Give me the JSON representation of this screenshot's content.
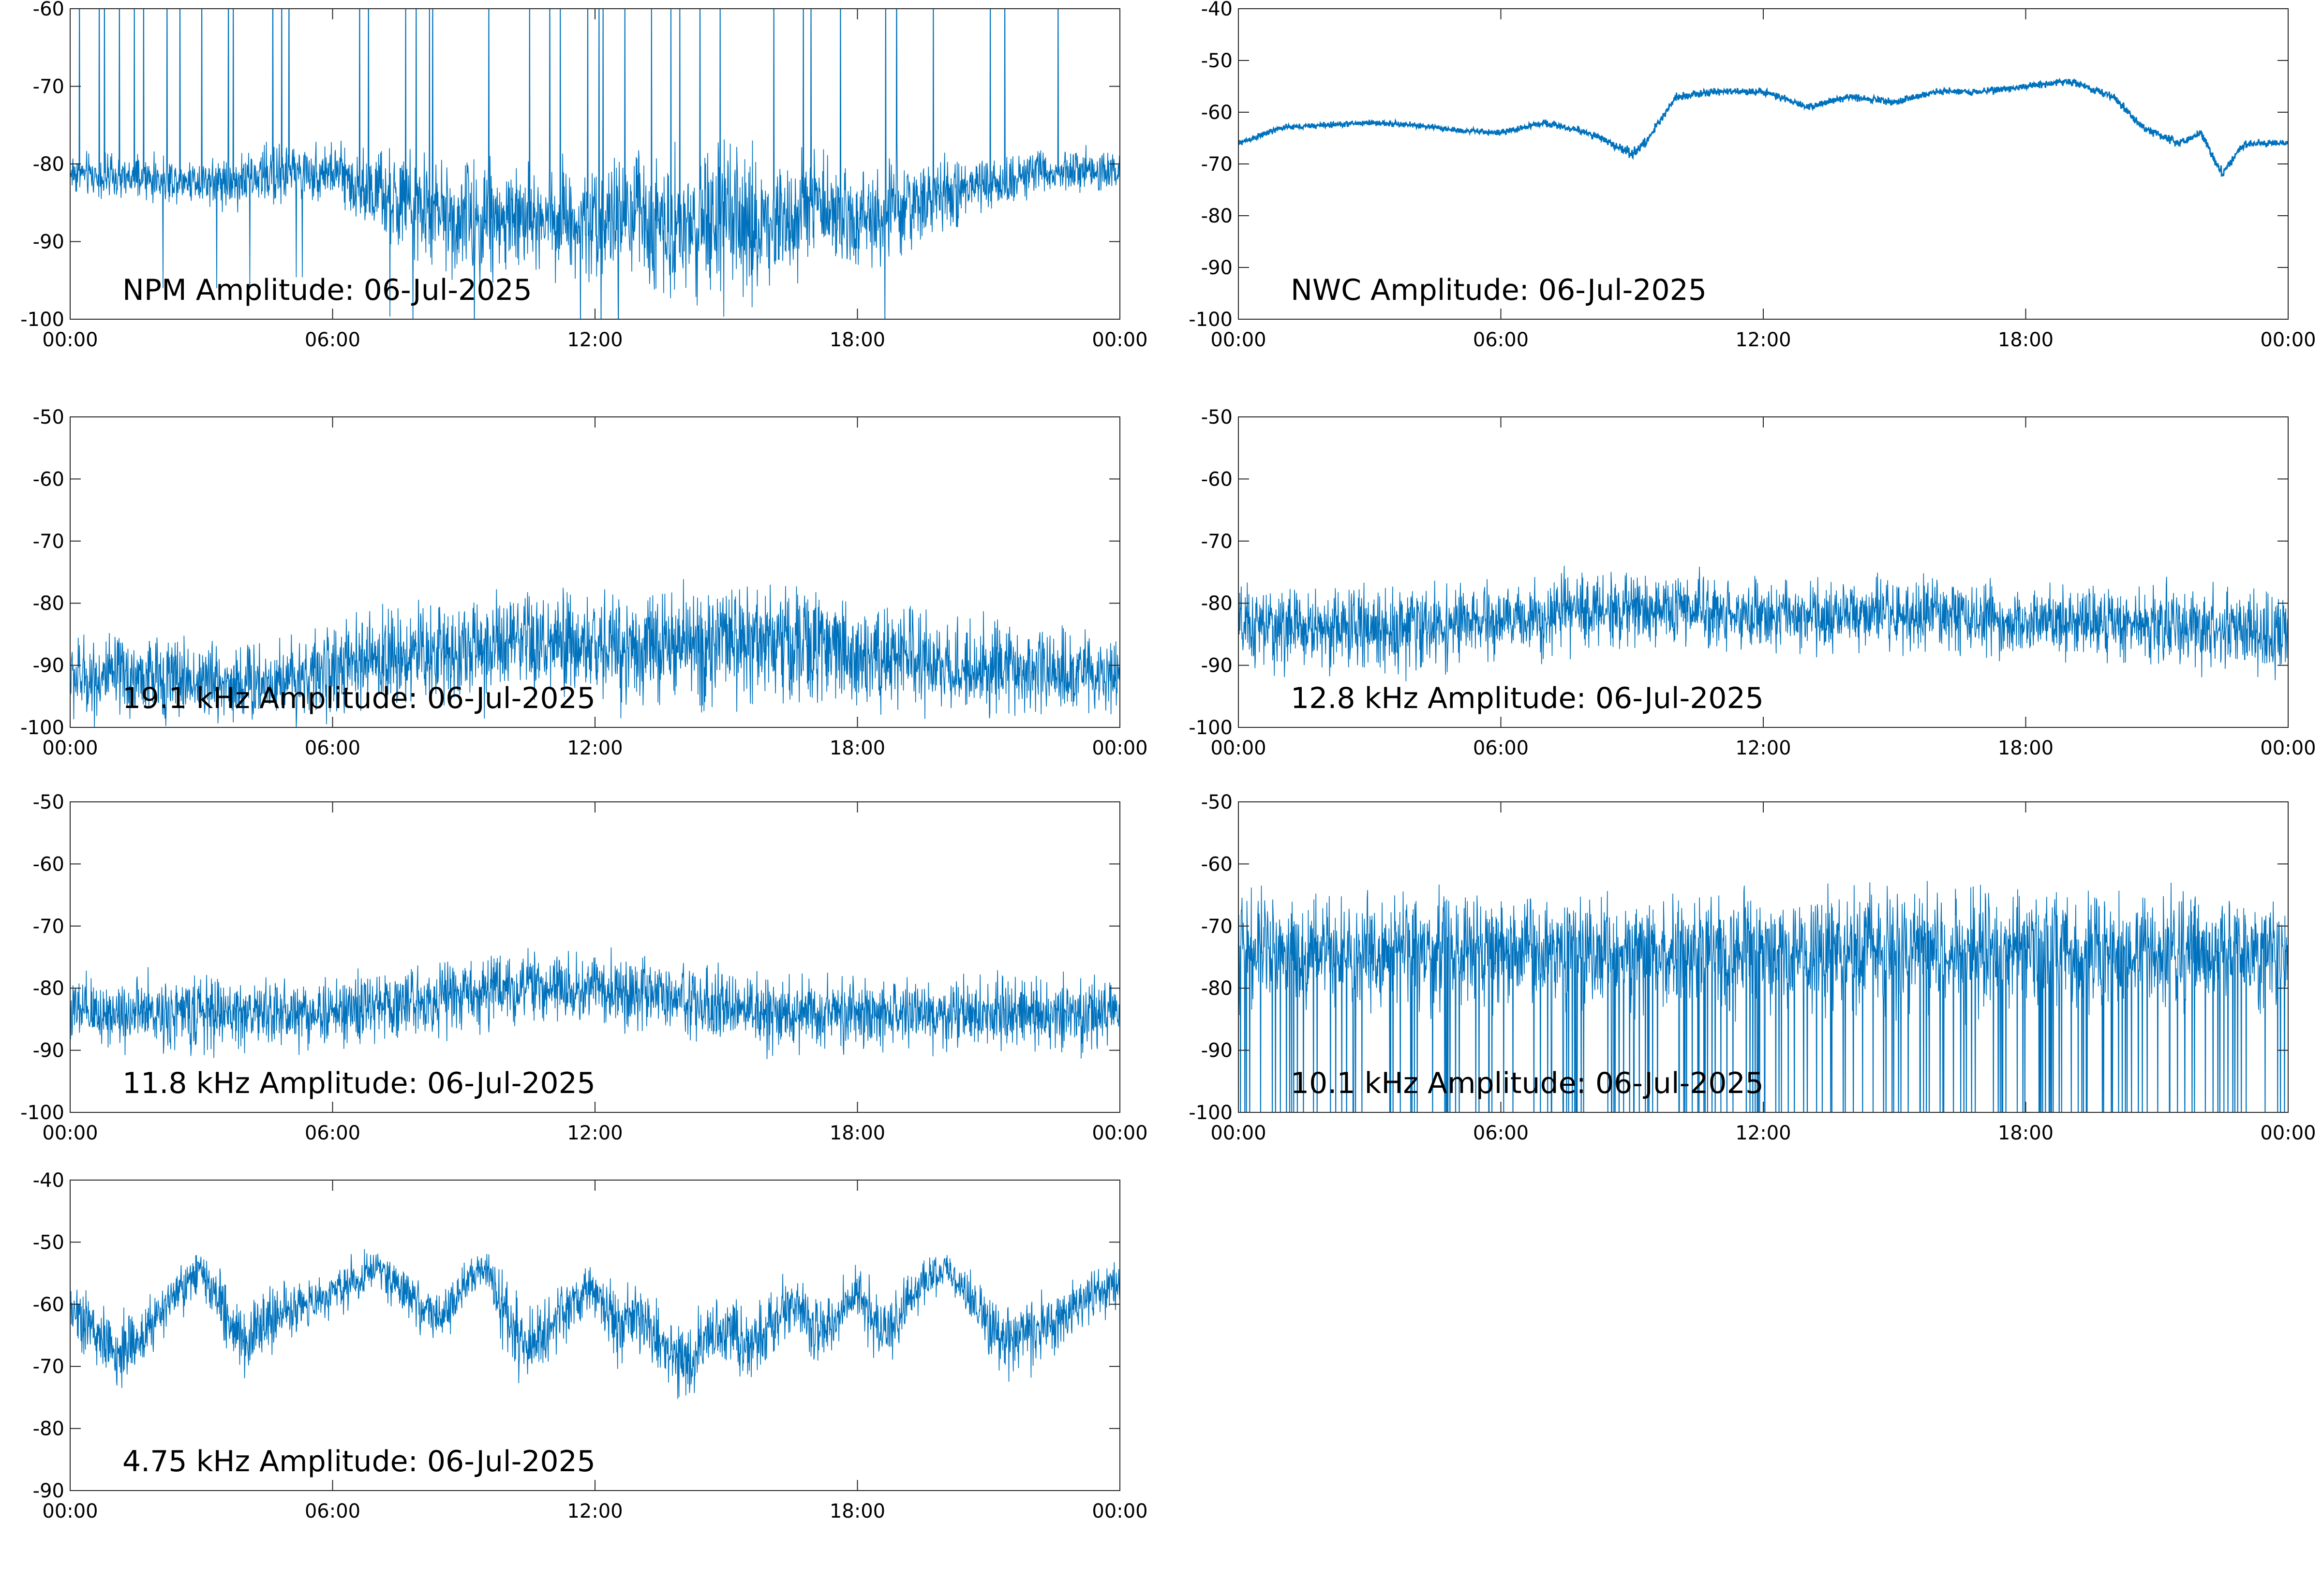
{
  "chart_data": [
    {
      "type": "line",
      "title": "NPM Amplitude: 06-Jul-2025",
      "xlim": [
        "00:00",
        "24:00"
      ],
      "xticks": [
        "00:00",
        "06:00",
        "12:00",
        "18:00",
        "00:00"
      ],
      "ylim": [
        -100,
        -60
      ],
      "yticks": [
        "-60",
        "-70",
        "-80",
        "-90",
        "-100"
      ],
      "series": [
        {
          "color": "#0072bd",
          "x_hours": [
            0,
            1,
            2,
            3,
            4,
            5,
            6,
            7,
            8,
            9,
            10,
            11,
            12,
            13,
            14,
            15,
            16,
            17,
            18,
            19,
            20,
            21,
            22,
            23,
            24
          ],
          "values": [
            -81,
            -82,
            -82,
            -82,
            -82,
            -81,
            -81,
            -84,
            -86,
            -87,
            -87,
            -87,
            -87,
            -87,
            -88,
            -88,
            -88,
            -85,
            -87,
            -86,
            -84,
            -83,
            -81,
            -81,
            -81
          ],
          "spread": [
            3,
            3,
            3,
            3,
            4,
            4,
            4,
            6,
            7,
            8,
            8,
            8,
            8,
            9,
            10,
            10,
            10,
            7,
            7,
            7,
            5,
            4,
            3,
            3,
            3
          ]
        }
      ]
    },
    {
      "type": "line",
      "title": "NWC Amplitude: 06-Jul-2025",
      "xlim": [
        "00:00",
        "24:00"
      ],
      "xticks": [
        "00:00",
        "06:00",
        "12:00",
        "18:00",
        "00:00"
      ],
      "ylim": [
        -100,
        -40
      ],
      "yticks": [
        "-40",
        "-50",
        "-60",
        "-70",
        "-80",
        "-90",
        "-100"
      ],
      "series": [
        {
          "color": "#0072bd",
          "x_hours": [
            0,
            1,
            2,
            3,
            4,
            5,
            6,
            7,
            8,
            9,
            9.3,
            10,
            11,
            12,
            13,
            14,
            15,
            16,
            17,
            18,
            19,
            20,
            20.7,
            21.5,
            22,
            22.5,
            23,
            24
          ],
          "values": [
            -66,
            -63,
            -62.5,
            -62,
            -62.5,
            -63.5,
            -64,
            -62,
            -64,
            -68,
            -66,
            -57,
            -56,
            -56,
            -59,
            -57,
            -58,
            -56,
            -56,
            -55,
            -54,
            -57,
            -63,
            -66,
            -64,
            -72,
            -66,
            -66
          ],
          "spread": [
            0.6,
            0.6,
            0.6,
            0.6,
            0.6,
            0.6,
            0.6,
            0.7,
            0.8,
            1.0,
            1.0,
            0.8,
            0.7,
            0.7,
            0.7,
            0.7,
            0.7,
            0.7,
            0.7,
            0.7,
            0.7,
            0.8,
            0.9,
            0.9,
            0.9,
            1.0,
            0.9,
            0.7
          ]
        }
      ]
    },
    {
      "type": "line",
      "title": "19.1 kHz Amplitude: 06-Jul-2025",
      "xlim": [
        "00:00",
        "24:00"
      ],
      "xticks": [
        "00:00",
        "06:00",
        "12:00",
        "18:00",
        "00:00"
      ],
      "ylim": [
        -100,
        -50
      ],
      "yticks": [
        "-50",
        "-60",
        "-70",
        "-80",
        "-90",
        "-100"
      ],
      "series": [
        {
          "color": "#0072bd",
          "x_hours": [
            0,
            2,
            4,
            6,
            7,
            8,
            10,
            12,
            14,
            16,
            18,
            20,
            22,
            24
          ],
          "values": [
            -92,
            -92,
            -93,
            -91,
            -89,
            -88,
            -87,
            -87,
            -87,
            -86,
            -88,
            -90,
            -91,
            -92
          ],
          "spread": [
            7,
            7,
            7,
            7,
            8,
            9,
            9,
            9,
            10,
            10,
            9,
            8,
            7,
            7
          ]
        }
      ]
    },
    {
      "type": "line",
      "title": "12.8 kHz Amplitude: 06-Jul-2025",
      "xlim": [
        "00:00",
        "24:00"
      ],
      "xticks": [
        "00:00",
        "06:00",
        "12:00",
        "18:00",
        "00:00"
      ],
      "ylim": [
        -100,
        -50
      ],
      "yticks": [
        "-50",
        "-60",
        "-70",
        "-80",
        "-90",
        "-100"
      ],
      "series": [
        {
          "color": "#0072bd",
          "x_hours": [
            0,
            2,
            4,
            6,
            8,
            10,
            12,
            14,
            16,
            18,
            20,
            22,
            24
          ],
          "values": [
            -84,
            -84,
            -84,
            -83,
            -81,
            -81,
            -82,
            -82,
            -82,
            -83,
            -83,
            -84,
            -85
          ],
          "spread": [
            7,
            7,
            7,
            6,
            6,
            6,
            6,
            6,
            6,
            6,
            6,
            7,
            7
          ]
        }
      ]
    },
    {
      "type": "line",
      "title": "11.8 kHz Amplitude: 06-Jul-2025",
      "xlim": [
        "00:00",
        "24:00"
      ],
      "xticks": [
        "00:00",
        "06:00",
        "12:00",
        "18:00",
        "00:00"
      ],
      "ylim": [
        -100,
        -50
      ],
      "yticks": [
        "-50",
        "-60",
        "-70",
        "-80",
        "-90",
        "-100"
      ],
      "series": [
        {
          "color": "#0072bd",
          "x_hours": [
            0,
            2,
            4,
            6,
            8,
            10,
            12,
            14,
            16,
            18,
            20,
            22,
            24
          ],
          "values": [
            -84,
            -84,
            -84,
            -84,
            -82,
            -80,
            -80,
            -82,
            -84,
            -84,
            -84,
            -84,
            -84
          ],
          "spread": [
            6,
            6,
            6,
            6,
            6,
            6,
            6,
            6,
            6,
            6,
            6,
            6,
            6
          ]
        }
      ]
    },
    {
      "type": "line",
      "title": "10.1 kHz Amplitude: 06-Jul-2025",
      "xlim": [
        "00:00",
        "24:00"
      ],
      "xticks": [
        "00:00",
        "06:00",
        "12:00",
        "18:00",
        "00:00"
      ],
      "ylim": [
        -100,
        -50
      ],
      "yticks": [
        "-50",
        "-60",
        "-70",
        "-80",
        "-90",
        "-100"
      ],
      "series": [
        {
          "color": "#0072bd",
          "x_hours": [
            0,
            2,
            4,
            6,
            8,
            10,
            12,
            14,
            16,
            18,
            20,
            22,
            24
          ],
          "values": [
            -74,
            -74,
            -74,
            -74,
            -74,
            -74,
            -74,
            -74,
            -74,
            -74,
            -74,
            -74,
            -74
          ],
          "spread": [
            9,
            9,
            9,
            9,
            9,
            9,
            10,
            10,
            10,
            10,
            9,
            9,
            9
          ]
        }
      ]
    },
    {
      "type": "line",
      "title": "4.75 kHz Amplitude: 06-Jul-2025",
      "xlim": [
        "00:00",
        "24:00"
      ],
      "xticks": [
        "00:00",
        "06:00",
        "12:00",
        "18:00",
        "00:00"
      ],
      "ylim": [
        -90,
        -40
      ],
      "yticks": [
        "-40",
        "-50",
        "-60",
        "-70",
        "-80",
        "-90"
      ],
      "series": [
        {
          "color": "#0072bd",
          "x_hours": [
            0,
            0.5,
            1,
            1.5,
            2,
            2.5,
            3,
            3.5,
            4,
            4.5,
            5,
            5.5,
            6,
            6.5,
            7,
            7.5,
            8,
            8.5,
            9,
            9.5,
            10,
            10.5,
            11,
            11.5,
            12,
            12.5,
            13,
            13.5,
            14,
            14.5,
            15,
            15.5,
            16,
            16.5,
            17,
            17.5,
            18,
            18.5,
            19,
            19.5,
            20,
            20.5,
            21,
            21.5,
            22,
            22.5,
            23,
            23.5,
            24
          ],
          "values": [
            -60,
            -64,
            -68,
            -66,
            -62,
            -58,
            -55,
            -61,
            -66,
            -63,
            -61,
            -60,
            -58,
            -56,
            -54,
            -57,
            -60,
            -63,
            -57,
            -54,
            -62,
            -66,
            -64,
            -60,
            -58,
            -64,
            -62,
            -66,
            -70,
            -66,
            -64,
            -67,
            -63,
            -60,
            -64,
            -62,
            -58,
            -64,
            -62,
            -56,
            -54,
            -58,
            -64,
            -66,
            -65,
            -63,
            -60,
            -58,
            -58
          ],
          "spread": [
            5,
            6,
            6,
            6,
            5,
            4,
            4,
            6,
            6,
            5,
            5,
            4,
            4,
            4,
            3,
            4,
            4,
            4,
            4,
            3,
            7,
            7,
            6,
            5,
            5,
            6,
            6,
            6,
            7,
            6,
            6,
            6,
            6,
            5,
            6,
            5,
            5,
            6,
            5,
            4,
            3,
            4,
            6,
            6,
            6,
            5,
            5,
            4,
            4
          ]
        }
      ]
    }
  ]
}
